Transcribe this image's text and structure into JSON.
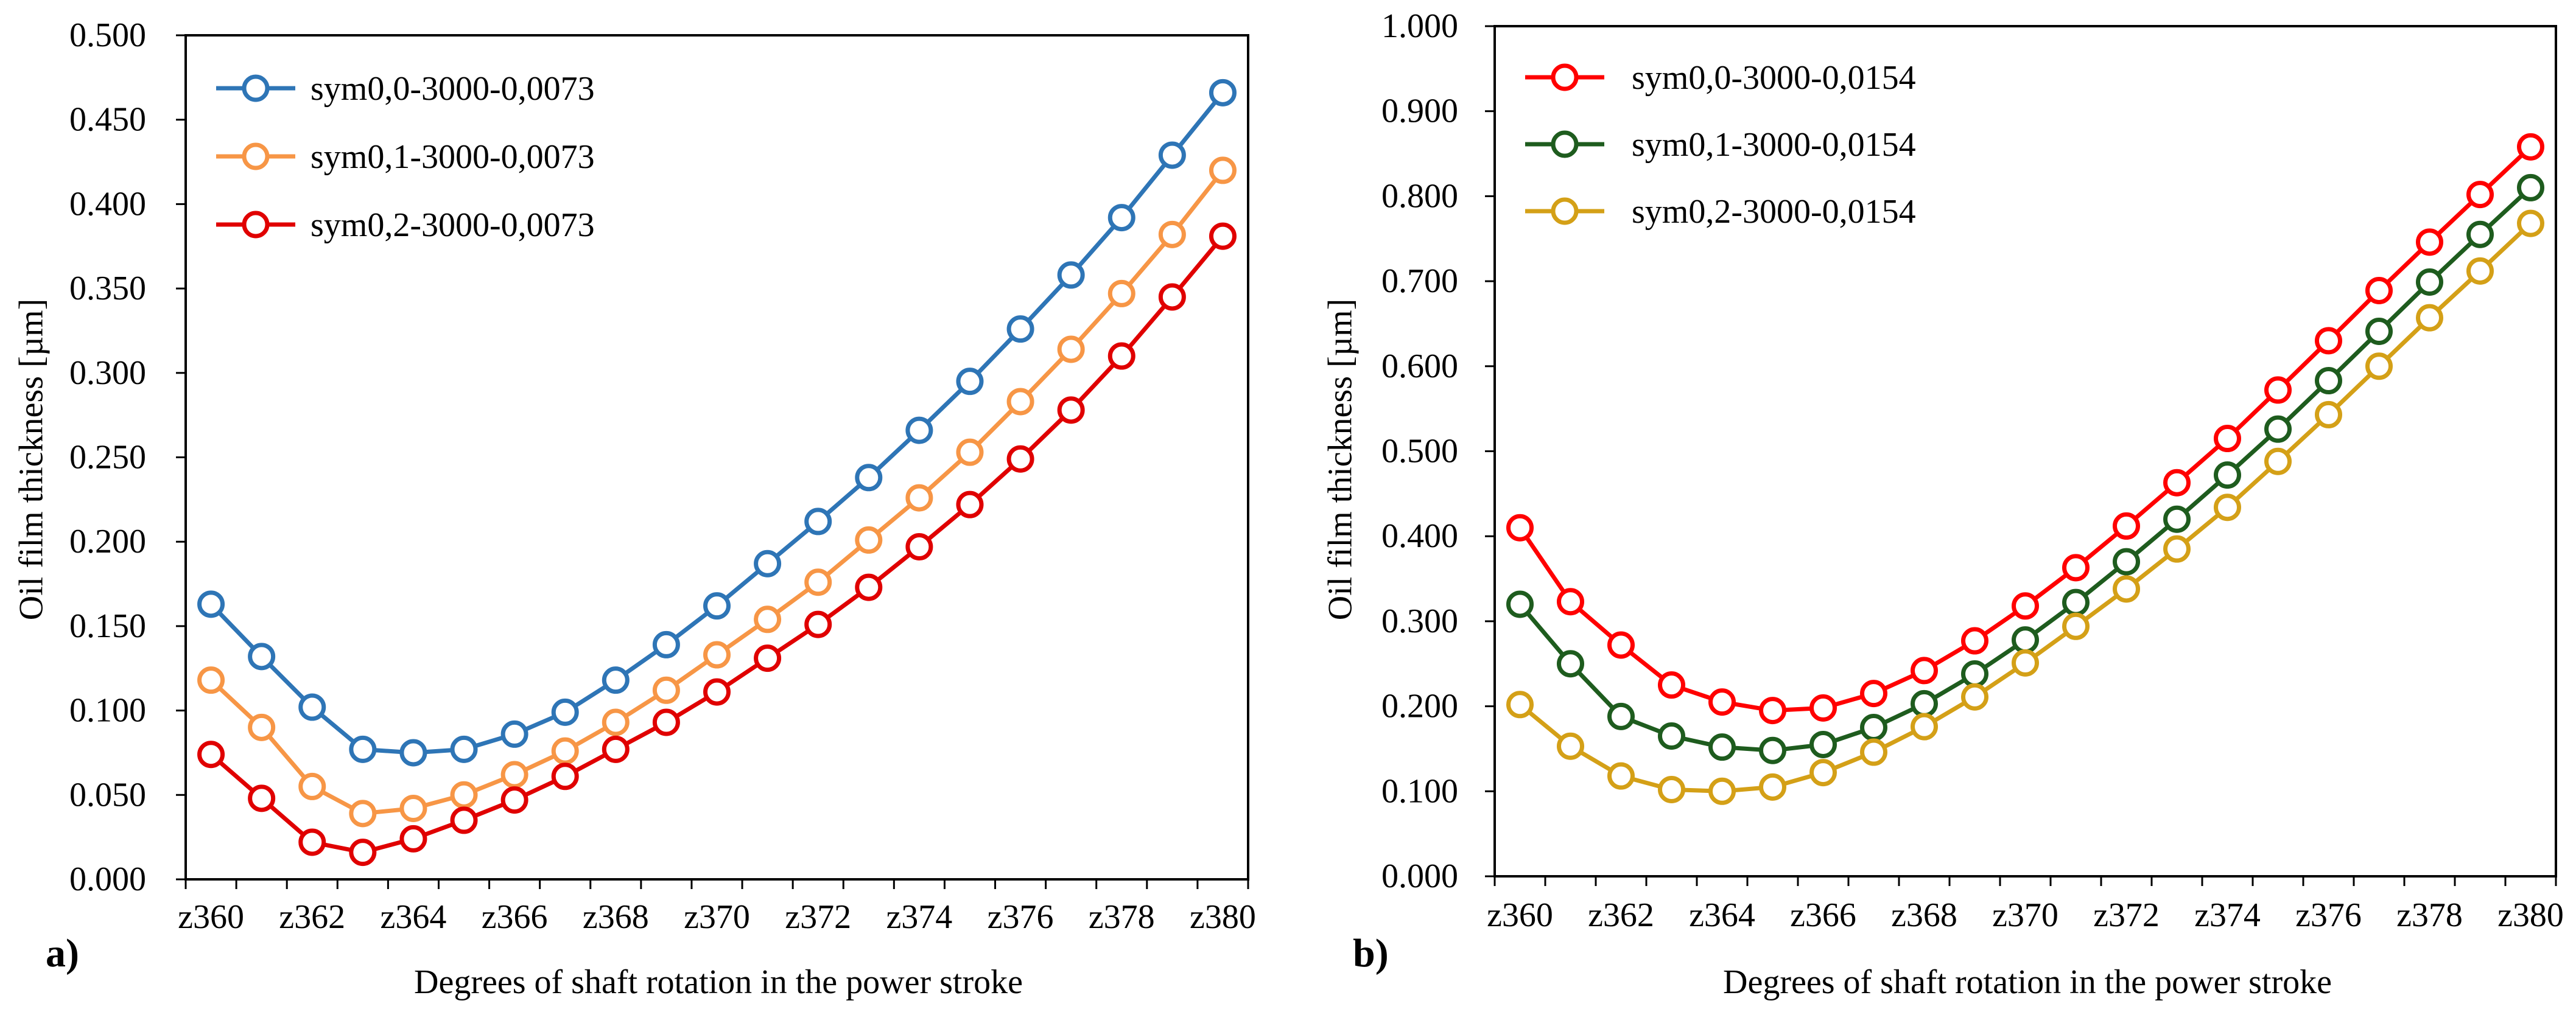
{
  "colors": {
    "blue": "#2E75B6",
    "orange": "#F79646",
    "red": "#E00000",
    "bright_red": "#FF0000",
    "dark_green": "#1E5C1E",
    "gold": "#D4A017",
    "axis": "#000000"
  },
  "chart_data": [
    {
      "type": "line",
      "panel_label": "a)",
      "xlabel": "Degrees of shaft rotation in the power stroke",
      "ylabel": "Oil film thickness [µm]",
      "ylim": [
        0,
        0.5
      ],
      "yticks": [
        "0.000",
        "0.050",
        "0.100",
        "0.150",
        "0.200",
        "0.250",
        "0.300",
        "0.350",
        "0.400",
        "0.450",
        "0.500"
      ],
      "x": [
        "z360",
        "z361",
        "z362",
        "z363",
        "z364",
        "z365",
        "z366",
        "z367",
        "z368",
        "z369",
        "z370",
        "z371",
        "z372",
        "z373",
        "z374",
        "z375",
        "z376",
        "z377",
        "z378",
        "z379",
        "z380"
      ],
      "xtick_labels": [
        "z360",
        "z362",
        "z364",
        "z366",
        "z368",
        "z370",
        "z372",
        "z374",
        "z376",
        "z378",
        "z380"
      ],
      "grid": false,
      "legend_position": "top-left",
      "series": [
        {
          "name": "sym0,0-3000-0,0073",
          "color": "#2E75B6",
          "values": [
            0.163,
            0.132,
            0.102,
            0.077,
            0.075,
            0.077,
            0.086,
            0.099,
            0.118,
            0.139,
            0.162,
            0.187,
            0.212,
            0.238,
            0.266,
            0.295,
            0.326,
            0.358,
            0.392,
            0.429,
            0.466
          ]
        },
        {
          "name": "sym0,1-3000-0,0073",
          "color": "#F79646",
          "values": [
            0.118,
            0.09,
            0.055,
            0.039,
            0.042,
            0.05,
            0.062,
            0.076,
            0.093,
            0.112,
            0.133,
            0.154,
            0.176,
            0.201,
            0.226,
            0.253,
            0.283,
            0.314,
            0.347,
            0.382,
            0.42
          ]
        },
        {
          "name": "sym0,2-3000-0,0073",
          "color": "#E00000",
          "values": [
            0.074,
            0.048,
            0.022,
            0.016,
            0.024,
            0.035,
            0.047,
            0.061,
            0.077,
            0.093,
            0.111,
            0.131,
            0.151,
            0.173,
            0.197,
            0.222,
            0.249,
            0.278,
            0.31,
            0.345,
            0.381
          ]
        }
      ]
    },
    {
      "type": "line",
      "panel_label": "b)",
      "xlabel": "Degrees of shaft rotation in the power stroke",
      "ylabel": "Oil film thickness [µm]",
      "ylim": [
        0,
        1.0
      ],
      "yticks": [
        "0.000",
        "0.100",
        "0.200",
        "0.300",
        "0.400",
        "0.500",
        "0.600",
        "0.700",
        "0.800",
        "0.900",
        "1.000"
      ],
      "x": [
        "z360",
        "z361",
        "z362",
        "z363",
        "z364",
        "z365",
        "z366",
        "z367",
        "z368",
        "z369",
        "z370",
        "z371",
        "z372",
        "z373",
        "z374",
        "z375",
        "z376",
        "z377",
        "z378",
        "z379",
        "z380"
      ],
      "xtick_labels": [
        "z360",
        "z362",
        "z364",
        "z366",
        "z368",
        "z370",
        "z372",
        "z374",
        "z376",
        "z378",
        "z380"
      ],
      "grid": false,
      "legend_position": "top-left",
      "series": [
        {
          "name": "sym0,0-3000-0,0154",
          "color": "#FF0000",
          "values": [
            0.41,
            0.323,
            0.272,
            0.225,
            0.205,
            0.195,
            0.198,
            0.215,
            0.242,
            0.277,
            0.318,
            0.363,
            0.412,
            0.463,
            0.515,
            0.572,
            0.63,
            0.689,
            0.746,
            0.802,
            0.858
          ]
        },
        {
          "name": "sym0,1-3000-0,0154",
          "color": "#1E5C1E",
          "values": [
            0.32,
            0.25,
            0.188,
            0.165,
            0.152,
            0.148,
            0.155,
            0.175,
            0.203,
            0.238,
            0.278,
            0.322,
            0.37,
            0.42,
            0.472,
            0.526,
            0.583,
            0.641,
            0.699,
            0.755,
            0.81
          ]
        },
        {
          "name": "sym0,2-3000-0,0154",
          "color": "#D4A017",
          "values": [
            0.202,
            0.153,
            0.118,
            0.102,
            0.1,
            0.105,
            0.122,
            0.146,
            0.176,
            0.211,
            0.251,
            0.294,
            0.338,
            0.385,
            0.434,
            0.488,
            0.543,
            0.6,
            0.657,
            0.712,
            0.768
          ]
        }
      ]
    }
  ]
}
